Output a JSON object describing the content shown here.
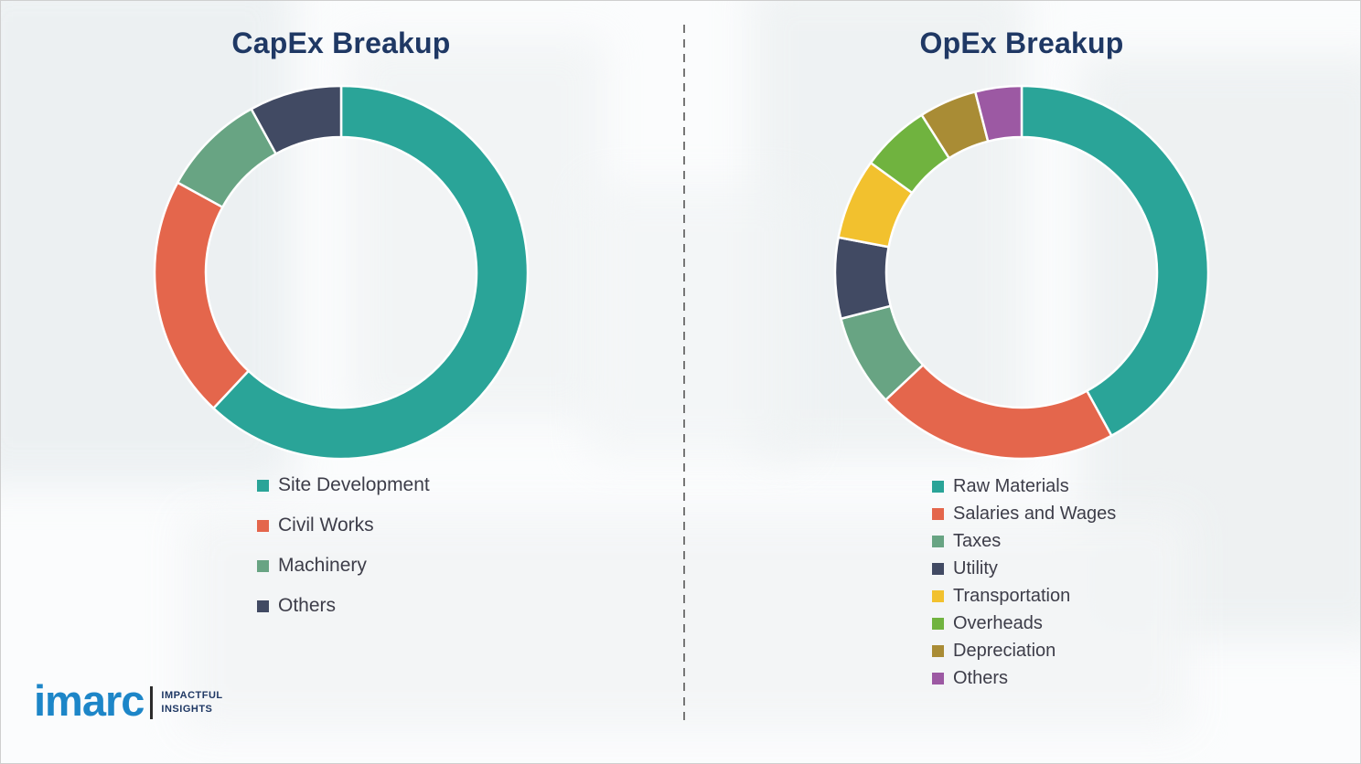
{
  "chart_data": [
    {
      "type": "pie",
      "subtype": "donut",
      "title": "CapEx Breakup",
      "labels": [
        "Site Development",
        "Civil Works",
        "Machinery",
        "Others"
      ],
      "values": [
        62,
        21,
        9,
        8
      ],
      "values_note": "relative share (%) estimated from arc angles; no numeric labels shown in image",
      "colors": [
        "#2aa498",
        "#e4664c",
        "#68a483",
        "#414a63"
      ],
      "start_angle_deg": 0,
      "direction": "clockwise",
      "inner_radius_ratio": 0.725,
      "legend_position": "below-left"
    },
    {
      "type": "pie",
      "subtype": "donut",
      "title": "OpEx Breakup",
      "labels": [
        "Raw Materials",
        "Salaries and Wages",
        "Taxes",
        "Utility",
        "Transportation",
        "Overheads",
        "Depreciation",
        "Others"
      ],
      "values": [
        42,
        21,
        8,
        7,
        7,
        6,
        5,
        4
      ],
      "values_note": "relative share (%) estimated from arc angles; no numeric labels shown in image",
      "colors": [
        "#2aa498",
        "#e4664c",
        "#68a483",
        "#414a63",
        "#f2c12e",
        "#70b33f",
        "#a98c35",
        "#9c59a3"
      ],
      "start_angle_deg": 0,
      "direction": "clockwise",
      "inner_radius_ratio": 0.725,
      "legend_position": "below-left"
    }
  ],
  "logo": {
    "wordmark": "imarc",
    "tagline_line1": "IMPACTFUL",
    "tagline_line2": "INSIGHTS"
  }
}
